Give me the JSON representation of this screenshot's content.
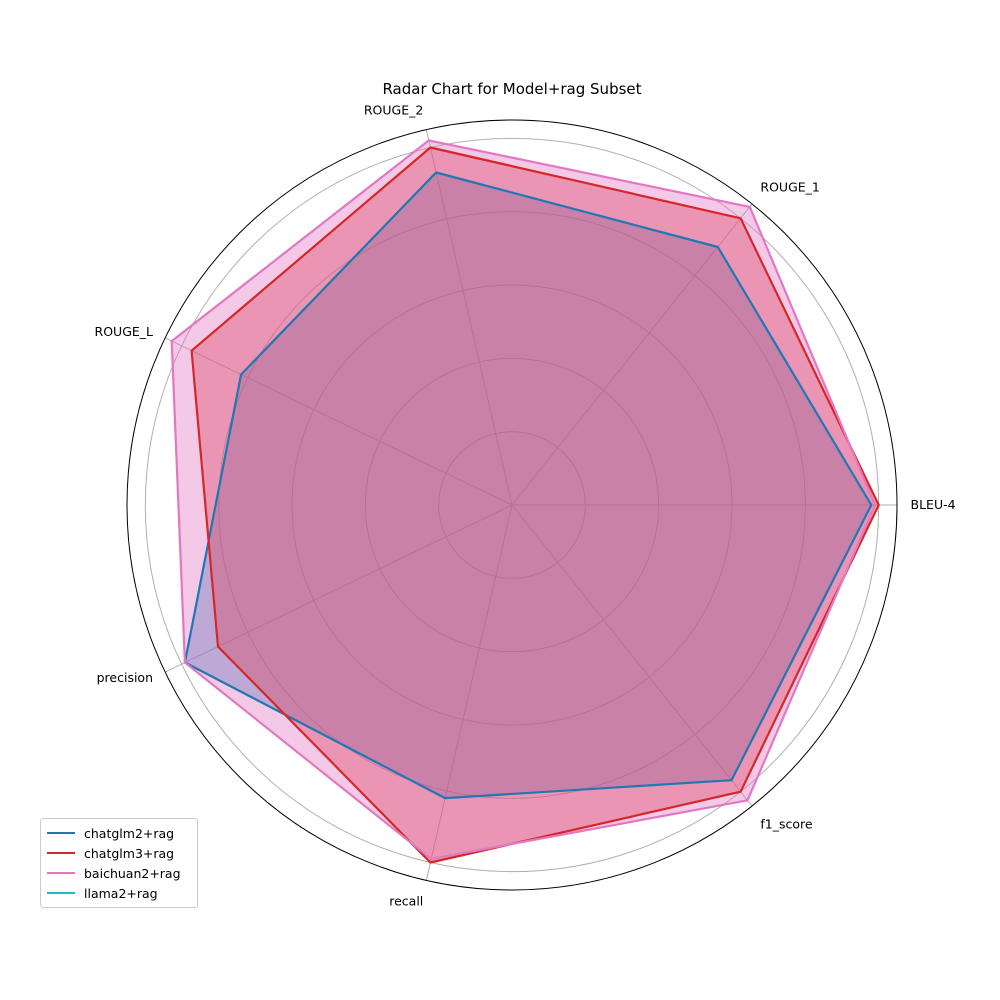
{
  "chart_data": {
    "type": "radar",
    "title": "Radar Chart for Model+rag Subset",
    "axes": [
      "BLEU-4",
      "ROUGE_1",
      "ROUGE_2",
      "ROUGE_L",
      "precision",
      "recall",
      "f1_score"
    ],
    "rlim": [
      0,
      1.05
    ],
    "rticks": [
      0.2,
      0.4,
      0.6,
      0.8,
      1.0
    ],
    "grid": true,
    "legend_position": "lower-left",
    "series": [
      {
        "name": "chatglm2+rag",
        "color": "#1f77b4",
        "values": [
          0.98,
          0.9,
          0.93,
          0.82,
          0.99,
          0.82,
          0.96
        ]
      },
      {
        "name": "chatglm3+rag",
        "color": "#d62728",
        "values": [
          1.0,
          1.0,
          1.0,
          0.97,
          0.89,
          1.0,
          1.0
        ]
      },
      {
        "name": "baichuan2+rag",
        "color": "#e377c2",
        "values": [
          0.99,
          1.04,
          1.02,
          1.03,
          0.99,
          0.99,
          1.03
        ]
      },
      {
        "name": "llama2+rag",
        "color": "#17becf",
        "values": []
      }
    ]
  }
}
